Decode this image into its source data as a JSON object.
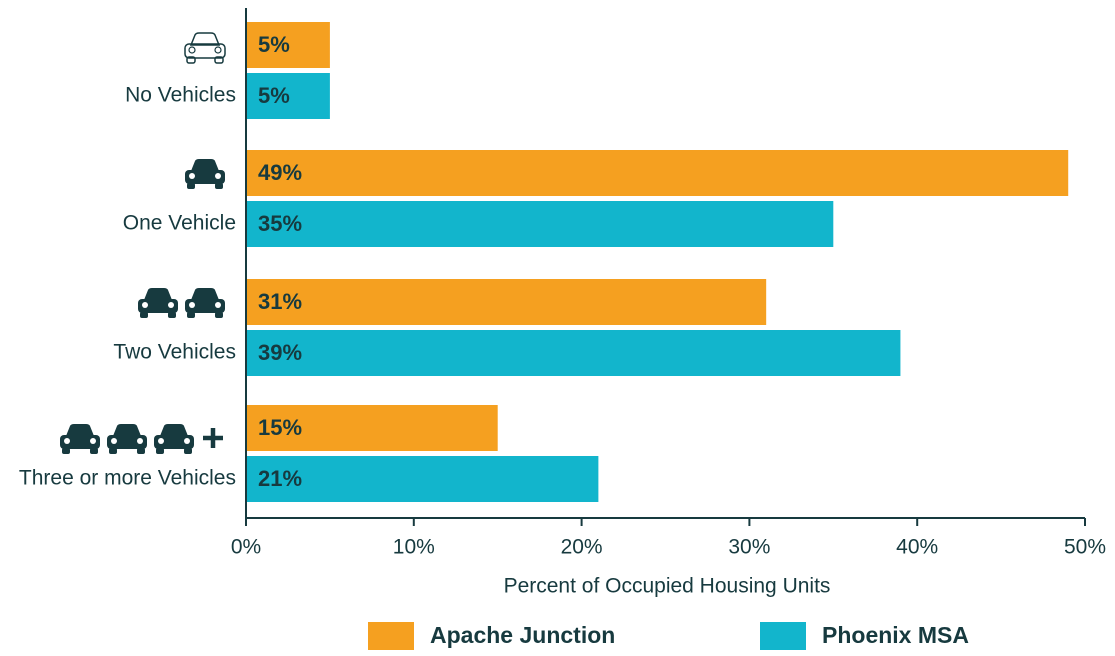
{
  "chart_data": {
    "type": "bar",
    "orientation": "horizontal",
    "x_label": "Percent of Occupied Housing Units",
    "categories": [
      "No Vehicles",
      "One Vehicle",
      "Two Vehicles",
      "Three or more Vehicles"
    ],
    "series": [
      {
        "name": "Apache Junction",
        "color": "#f5a020",
        "values": [
          5,
          49,
          31,
          15
        ],
        "value_labels": [
          "5%",
          "49%",
          "31%",
          "15%"
        ]
      },
      {
        "name": "Phoenix MSA",
        "color": "#12b5cc",
        "values": [
          5,
          35,
          39,
          21
        ],
        "value_labels": [
          "5%",
          "35%",
          "39%",
          "21%"
        ]
      }
    ],
    "xlim": [
      0,
      50
    ],
    "xticks": [
      {
        "value": 0,
        "label": "0%"
      },
      {
        "value": 10,
        "label": "10%"
      },
      {
        "value": 20,
        "label": "20%"
      },
      {
        "value": 30,
        "label": "30%"
      },
      {
        "value": 40,
        "label": "40%"
      },
      {
        "value": 50,
        "label": "50%"
      }
    ],
    "legend": "bottom"
  }
}
